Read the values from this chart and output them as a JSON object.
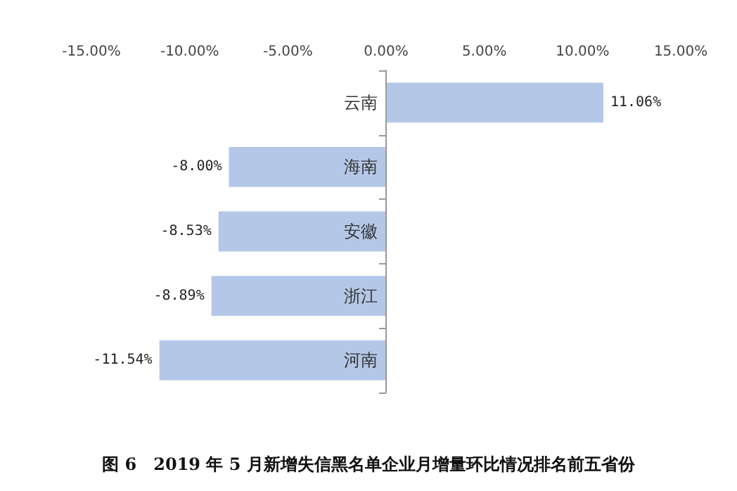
{
  "chart_data": {
    "type": "bar",
    "orientation": "horizontal",
    "title": "图 6　2019 年 5 月新增失信黑名单企业月增量环比情况排名前五省份",
    "categories": [
      "云南",
      "海南",
      "安徽",
      "浙江",
      "河南"
    ],
    "values": [
      11.06,
      -8.0,
      -8.53,
      -8.89,
      -11.54
    ],
    "color": "#b4c7e7",
    "value_labels": [
      "11.06%",
      "-8.00%",
      "-8.53%",
      "-8.89%",
      "-11.54%"
    ],
    "xlim": [
      -15,
      15
    ],
    "xticks": [
      {
        "value": -15,
        "label": "-15.00%"
      },
      {
        "value": -10,
        "label": "-10.00%"
      },
      {
        "value": -5,
        "label": "-5.00%"
      },
      {
        "value": 0,
        "label": "0.00%"
      },
      {
        "value": 5,
        "label": "5.00%"
      },
      {
        "value": 10,
        "label": "10.00%"
      },
      {
        "value": 15,
        "label": "15.00%"
      }
    ]
  }
}
